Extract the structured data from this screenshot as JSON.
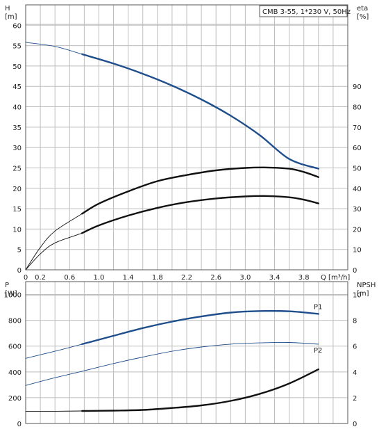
{
  "chart_data": [
    {
      "type": "line",
      "title": "CMB 3-55, 1*230 V, 50Hz",
      "xlabel": "Q [m³/h]",
      "xlim": [
        0,
        4.4
      ],
      "x_ticks": [
        "0",
        "0.2",
        "0.6",
        "1.0",
        "1.4",
        "1.8",
        "2.2",
        "2.6",
        "3.0",
        "3.4",
        "3.8"
      ],
      "left_axis": {
        "label": "H",
        "unit": "[m]",
        "ylim": [
          0,
          65
        ],
        "ticks": [
          "0",
          "5",
          "10",
          "15",
          "20",
          "25",
          "30",
          "35",
          "40",
          "45",
          "50",
          "55",
          "60"
        ]
      },
      "right_axis": {
        "label": "eta",
        "unit": "[%]",
        "ylim": [
          0,
          130
        ],
        "ticks": [
          "0",
          "10",
          "20",
          "30",
          "40",
          "50",
          "60",
          "70",
          "80",
          "90"
        ]
      },
      "series": [
        {
          "axis": "left",
          "color": "#1f4e8c",
          "highlight_from": 0.77,
          "x": [
            0,
            0.4,
            0.77,
            1.2,
            1.6,
            2.0,
            2.4,
            2.8,
            3.2,
            3.6,
            4.0
          ],
          "y": [
            55.8,
            54.8,
            52.9,
            50.6,
            48.1,
            45.2,
            41.8,
            37.8,
            33.0,
            27.2,
            24.8
          ]
        },
        {
          "axis": "right",
          "color": "#111111",
          "highlight_from": 0.77,
          "x": [
            0,
            0.2,
            0.4,
            0.77,
            1.0,
            1.4,
            1.8,
            2.2,
            2.6,
            3.0,
            3.3,
            3.6,
            3.8,
            4.0
          ],
          "y": [
            0,
            11,
            19,
            27.5,
            32.5,
            38.5,
            43.5,
            46.5,
            48.8,
            50.0,
            50.2,
            49.6,
            48.0,
            45.5
          ]
        },
        {
          "axis": "left",
          "color": "#111111",
          "highlight_from": 0.77,
          "x": [
            0,
            0.2,
            0.4,
            0.77,
            1.0,
            1.4,
            1.8,
            2.2,
            2.6,
            3.0,
            3.3,
            3.6,
            3.8,
            4.0
          ],
          "y": [
            0,
            3.9,
            6.6,
            9.0,
            10.9,
            13.3,
            15.2,
            16.6,
            17.5,
            18.0,
            18.1,
            17.8,
            17.2,
            16.3
          ]
        }
      ]
    },
    {
      "type": "line",
      "xlim": [
        0,
        4.4
      ],
      "left_axis": {
        "label": "P",
        "unit": "[W]",
        "ylim": [
          0,
          1100
        ],
        "ticks": [
          "0",
          "200",
          "400",
          "600",
          "800",
          "1000"
        ]
      },
      "right_axis": {
        "label": "NPSH",
        "unit": "[m]",
        "ylim": [
          0,
          11
        ],
        "ticks": [
          "0",
          "2",
          "4",
          "6",
          "8",
          "10"
        ]
      },
      "series": [
        {
          "name": "P1",
          "axis": "left",
          "color": "#1f4e8c",
          "highlight_from": 0.77,
          "x": [
            0,
            0.4,
            0.77,
            1.2,
            1.6,
            2.0,
            2.4,
            2.8,
            3.2,
            3.6,
            4.0
          ],
          "y": [
            505,
            560,
            615,
            680,
            740,
            790,
            830,
            860,
            872,
            870,
            850
          ]
        },
        {
          "name": "P2",
          "axis": "left",
          "color": "#1f4e8c",
          "highlight_from": 99,
          "x": [
            0,
            0.4,
            0.77,
            1.2,
            1.6,
            2.0,
            2.4,
            2.8,
            3.2,
            3.6,
            4.0
          ],
          "y": [
            295,
            355,
            405,
            465,
            515,
            560,
            593,
            615,
            625,
            628,
            615
          ]
        },
        {
          "axis": "right",
          "color": "#111111",
          "highlight_from": 0.77,
          "x": [
            0,
            0.4,
            0.77,
            1.2,
            1.6,
            2.0,
            2.4,
            2.8,
            3.2,
            3.6,
            4.0
          ],
          "y": [
            0.95,
            0.95,
            0.97,
            1.0,
            1.05,
            1.2,
            1.4,
            1.75,
            2.3,
            3.1,
            4.2
          ]
        }
      ]
    }
  ]
}
